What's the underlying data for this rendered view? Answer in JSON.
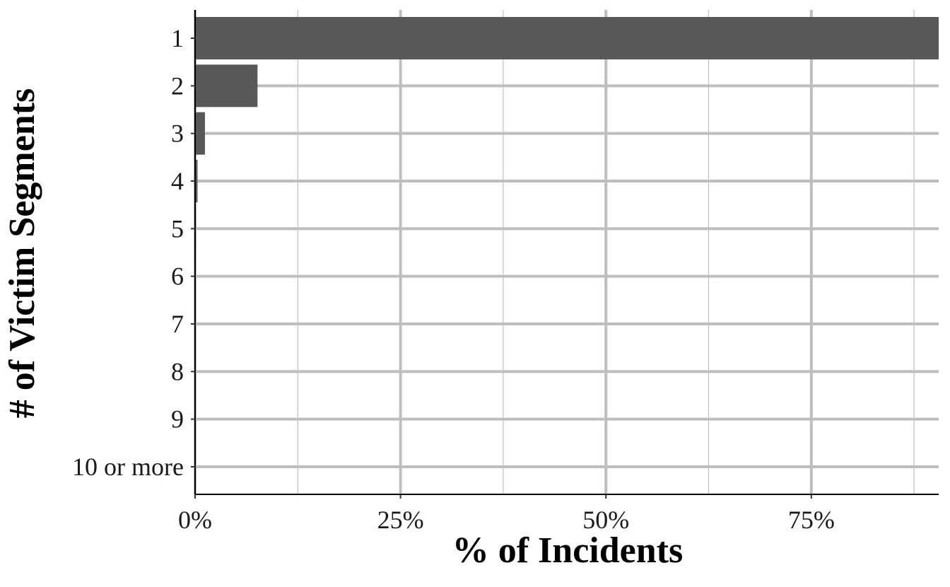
{
  "chart_data": {
    "type": "bar",
    "orientation": "horizontal",
    "title": "",
    "xlabel": "% of Incidents",
    "ylabel": "# of Victim Segments",
    "categories": [
      "1",
      "2",
      "3",
      "4",
      "5",
      "6",
      "7",
      "8",
      "9",
      "10 or more"
    ],
    "values": [
      90.5,
      7.6,
      1.2,
      0.3,
      0.1,
      0.05,
      0.02,
      0.01,
      0.01,
      0.01
    ],
    "x_ticks": [
      "0%",
      "25%",
      "50%",
      "75%"
    ],
    "x_tick_values": [
      0,
      25,
      50,
      75
    ],
    "xlim": [
      0,
      90.5
    ],
    "grid": true,
    "legend": "none",
    "bar_color": "#595959",
    "grid_color": "#bebebe"
  }
}
